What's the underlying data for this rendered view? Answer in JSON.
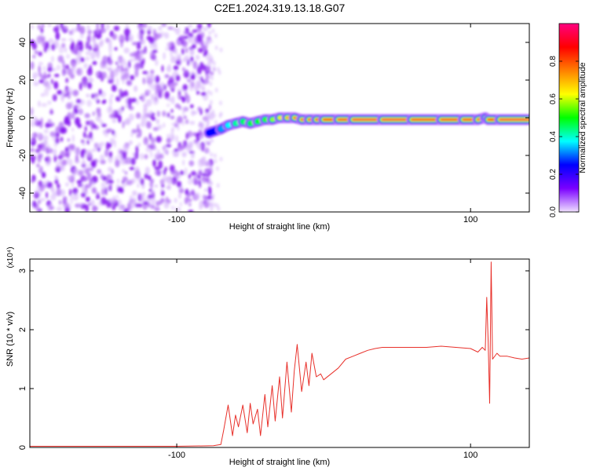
{
  "title": "C2E1.2024.319.13.18.G07",
  "colorbar": {
    "label": "Normalized spectral amplitude",
    "ticks": [
      "0.0",
      "0.2",
      "0.4",
      "0.6",
      "0.8"
    ],
    "colors": [
      "#f0e0ff",
      "#7a00ff",
      "#0000ff",
      "#00ffff",
      "#00ff00",
      "#ffff00",
      "#ff8000",
      "#ff0000",
      "#ff0080"
    ]
  },
  "chart_data": [
    {
      "type": "heatmap",
      "xlabel": "Height of straight line (km)",
      "ylabel": "Frequency (Hz)",
      "xlim": [
        -200,
        140
      ],
      "ylim": [
        -50,
        50
      ],
      "xticks": [
        -100,
        100
      ],
      "xtick_labels": [
        "-100",
        "100"
      ],
      "yticks": [
        -40,
        -20,
        0,
        20,
        40
      ],
      "ytick_labels": [
        "-40",
        "-20",
        "0",
        "20",
        "40"
      ],
      "noise_region_x": [
        -200,
        -75
      ],
      "signal_ridge": {
        "x": [
          -78,
          -70,
          -65,
          -60,
          -55,
          -50,
          -45,
          -40,
          -35,
          -30,
          -25,
          -20,
          -15,
          -10,
          -5,
          0,
          10,
          20,
          40,
          60,
          80,
          95,
          105,
          110,
          112,
          120,
          140
        ],
        "freq": [
          -8,
          -6,
          -4,
          -3,
          -2,
          -3,
          -2,
          -1,
          -1,
          0,
          0,
          0,
          -1,
          -1,
          -1,
          -1,
          -1,
          -1,
          -1,
          -1,
          -1,
          -1,
          -1,
          0,
          -1,
          -1,
          -1
        ],
        "amplitude": [
          0.2,
          0.3,
          0.35,
          0.4,
          0.45,
          0.45,
          0.5,
          0.5,
          0.55,
          0.6,
          0.7,
          0.75,
          0.8,
          0.85,
          0.85,
          0.9,
          0.9,
          0.95,
          0.95,
          0.95,
          0.9,
          0.95,
          0.9,
          0.7,
          0.8,
          0.95,
          0.95
        ]
      },
      "colorbar_range": [
        0,
        1
      ]
    },
    {
      "type": "line",
      "xlabel": "Height of straight line (km)",
      "ylabel": "SNR (10 * v/v)",
      "y_multiplier": "(x10⁴)",
      "xlim": [
        -200,
        140
      ],
      "ylim": [
        0,
        3.2
      ],
      "xticks": [
        -100,
        100
      ],
      "xtick_labels": [
        "-100",
        "100"
      ],
      "yticks": [
        0,
        1,
        2,
        3
      ],
      "ytick_labels": [
        "0",
        "1",
        "2",
        "3"
      ],
      "series": [
        {
          "color": "#e8302a",
          "x": [
            -200,
            -100,
            -75,
            -70,
            -68,
            -65,
            -62,
            -60,
            -58,
            -55,
            -52,
            -50,
            -48,
            -45,
            -43,
            -40,
            -38,
            -35,
            -33,
            -30,
            -28,
            -25,
            -22,
            -20,
            -18,
            -15,
            -12,
            -10,
            -8,
            -5,
            -2,
            0,
            5,
            10,
            15,
            20,
            25,
            30,
            35,
            40,
            50,
            60,
            70,
            80,
            90,
            100,
            105,
            108,
            110,
            111,
            112,
            113,
            114,
            115,
            118,
            120,
            125,
            130,
            135,
            140
          ],
          "y": [
            0.02,
            0.02,
            0.03,
            0.05,
            0.3,
            0.72,
            0.2,
            0.55,
            0.35,
            0.72,
            0.25,
            0.75,
            0.4,
            0.65,
            0.2,
            0.9,
            0.35,
            1.05,
            0.45,
            1.2,
            0.5,
            1.45,
            0.6,
            1.3,
            1.75,
            0.95,
            1.45,
            1.05,
            1.6,
            1.2,
            1.25,
            1.15,
            1.25,
            1.35,
            1.5,
            1.55,
            1.6,
            1.65,
            1.68,
            1.7,
            1.7,
            1.7,
            1.7,
            1.72,
            1.7,
            1.68,
            1.62,
            1.7,
            1.65,
            2.55,
            1.8,
            0.75,
            3.15,
            1.5,
            1.6,
            1.55,
            1.55,
            1.52,
            1.5,
            1.52
          ]
        }
      ]
    }
  ]
}
